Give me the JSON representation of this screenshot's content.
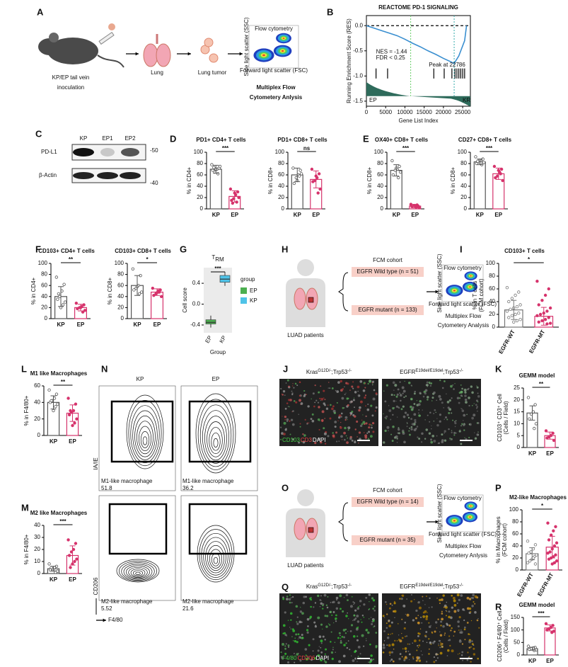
{
  "panel_labels": [
    "A",
    "B",
    "C",
    "D",
    "E",
    "F",
    "G",
    "H",
    "I",
    "L",
    "N",
    "J",
    "K",
    "M",
    "O",
    "P",
    "Q",
    "R"
  ],
  "schematic": {
    "inoculation": [
      "KP/EP tail vein",
      "inoculation"
    ],
    "lung": "Lung",
    "tumor": "Lung tumor",
    "analysis": [
      "Multiplex Flow",
      "Cytometery Anlysis"
    ]
  },
  "flow_plot": {
    "title": "Flow cytometry",
    "x_axis": "Forward light scatter (FSC)",
    "y_axis": "Side light scatter (SSC)"
  },
  "western_blot": {
    "lanes": [
      "KP",
      "EP1",
      "EP2"
    ],
    "rows": [
      "PD-L1",
      "β-Actin"
    ],
    "markers": [
      "-50",
      "-40"
    ]
  },
  "cohort_h": {
    "patients": "LUAD patients",
    "title": "FCM cohort",
    "groups": [
      "EGFR Wild type (n = 51)",
      "EGFR mutant (n = 133)"
    ],
    "analysis": [
      "Multiplex Flow",
      "Cytometery Analysis"
    ]
  },
  "cohort_o": {
    "patients": "LUAD patients",
    "title": "FCM cohort",
    "groups": [
      "EGFR Wild type (n = 14)",
      "EGFR mutant (n = 35)"
    ],
    "analysis": [
      "Multiplex Flow",
      "Cytometery Anlysis"
    ]
  },
  "flow_n": {
    "columns": [
      "KP",
      "EP"
    ],
    "y_axis_top": "IA/IE",
    "y_axis_bottom": "CD206",
    "x_axis": "F4/80",
    "gates": [
      {
        "label": "M1-like macrophage",
        "values": [
          51.8,
          36.2
        ]
      },
      {
        "label": "M2-like macrophage",
        "values": [
          5.52,
          21.6
        ]
      }
    ]
  },
  "images_j": {
    "titles": [
      [
        {
          "text": "Kras"
        },
        {
          "sup": "G12D/-"
        },
        {
          "text": ";Trp53"
        },
        {
          "sup": "-/-"
        }
      ],
      [
        {
          "text": "EGFR"
        },
        {
          "sup": "E19del/E19del"
        },
        {
          "text": ";Trp53"
        },
        {
          "sup": "-/-"
        }
      ]
    ],
    "stains": [
      "CD103",
      "CD3",
      "DAPI"
    ]
  },
  "images_q": {
    "titles": [
      [
        {
          "text": "Kras"
        },
        {
          "sup": "G12D/-"
        },
        {
          "text": ";Trp53"
        },
        {
          "sup": "-/-"
        }
      ],
      [
        {
          "text": "EGFR"
        },
        {
          "sup": "E19del/E19del"
        },
        {
          "text": ";Trp53"
        },
        {
          "sup": "-/-"
        }
      ]
    ],
    "stains": [
      "F4/80",
      "CD206",
      "DAPI"
    ]
  },
  "chart_data": [
    {
      "type": "gsea",
      "title": "REACTOME PD-1 SIGNALING",
      "y_label": "Running Enrichment Score (RES)",
      "x_label": "Gene List Index",
      "x": [
        0,
        2000,
        4000,
        6000,
        8000,
        10000,
        12000,
        14000,
        16000,
        18000,
        20000,
        22000,
        22786,
        24000,
        25500,
        26000
      ],
      "values": [
        0,
        -0.05,
        -0.1,
        -0.15,
        -0.2,
        -0.27,
        -0.35,
        -0.42,
        -0.5,
        -0.57,
        -0.65,
        -0.72,
        -0.75,
        -0.6,
        -0.3,
        0
      ],
      "hits": [
        2500,
        5500,
        17500,
        20200,
        22200,
        23000,
        23500,
        24000,
        24500,
        25000,
        25500
      ],
      "marker_lines": [
        11500,
        22786
      ],
      "color": "#3a8fd0",
      "xlim": [
        0,
        27000
      ],
      "xticks": [
        0,
        5000,
        10000,
        15000,
        20000,
        25000
      ],
      "ylim": [
        -1.6,
        0.2
      ],
      "yticks": [
        {
          "value": 0,
          "label": "0.0"
        },
        -0.5,
        {
          "value": -1,
          "label": "-1.0"
        },
        -1.5
      ],
      "annotations": [
        "NES = -1.44",
        "FDR < 0.25",
        "Peak at 22786"
      ],
      "left_label": "EP",
      "right_label": "KR"
    },
    {
      "type": "bar",
      "title": "PD1+ CD4+ T cells",
      "y_label": [
        "% in CD4+"
      ],
      "categories": [
        "KP",
        "EP"
      ],
      "values": [
        70,
        22
      ],
      "errors": [
        7,
        10
      ],
      "points": [
        [
          78,
          72,
          70,
          65,
          68,
          75,
          62,
          70,
          73
        ],
        [
          35,
          30,
          25,
          18,
          15,
          20,
          12,
          28,
          10
        ]
      ],
      "colors": [
        "#555555",
        "#d6336c"
      ],
      "significance": "***",
      "ylim": [
        0,
        100
      ],
      "yticks": [
        0,
        20,
        40,
        60,
        80,
        100
      ]
    },
    {
      "type": "bar",
      "title": "PD1+ CD8+ T cells",
      "y_label": [
        "% in CD8+"
      ],
      "categories": [
        "KP",
        "EP"
      ],
      "values": [
        60,
        52
      ],
      "errors": [
        12,
        15
      ],
      "points": [
        [
          72,
          68,
          60,
          55,
          45,
          62,
          58,
          50
        ],
        [
          70,
          62,
          55,
          50,
          48,
          35,
          28,
          58
        ]
      ],
      "colors": [
        "#555555",
        "#d6336c"
      ],
      "significance": "ns",
      "ylim": [
        0,
        100
      ],
      "yticks": [
        0,
        20,
        40,
        60,
        80,
        100
      ]
    },
    {
      "type": "bar",
      "title": "OX40+ CD8+ T cells",
      "y_label": [
        "% in CD8+"
      ],
      "categories": [
        "KP",
        "EP"
      ],
      "values": [
        68,
        5
      ],
      "errors": [
        10,
        3
      ],
      "points": [
        [
          85,
          75,
          70,
          68,
          60,
          65,
          55,
          72
        ],
        [
          8,
          5,
          3,
          6,
          4,
          2,
          7,
          5
        ]
      ],
      "colors": [
        "#555555",
        "#d6336c"
      ],
      "significance": "***",
      "ylim": [
        0,
        100
      ],
      "yticks": [
        0,
        20,
        40,
        60,
        80,
        100
      ]
    },
    {
      "type": "bar",
      "title": "CD27+ CD8+ T cells",
      "y_label": [
        "% in CD8+"
      ],
      "categories": [
        "KP",
        "EP"
      ],
      "values": [
        83,
        62
      ],
      "errors": [
        5,
        10
      ],
      "points": [
        [
          92,
          88,
          85,
          83,
          80,
          82,
          78,
          86,
          84
        ],
        [
          75,
          70,
          65,
          58,
          55,
          50,
          62,
          68
        ]
      ],
      "colors": [
        "#555555",
        "#d6336c"
      ],
      "significance": "***",
      "ylim": [
        0,
        100
      ],
      "yticks": [
        0,
        20,
        40,
        60,
        80,
        100
      ]
    },
    {
      "type": "bar",
      "title": "CD103+ CD4+ T cells",
      "y_label": [
        "% in CD4+"
      ],
      "categories": [
        "KP",
        "EP"
      ],
      "values": [
        40,
        20
      ],
      "errors": [
        18,
        6
      ],
      "points": [
        [
          75,
          62,
          50,
          40,
          35,
          30,
          25,
          20,
          45
        ],
        [
          28,
          25,
          22,
          20,
          18,
          15,
          12,
          20
        ]
      ],
      "colors": [
        "#555555",
        "#d6336c"
      ],
      "significance": "**",
      "ylim": [
        0,
        100
      ],
      "yticks": [
        0,
        20,
        40,
        60,
        80,
        100
      ]
    },
    {
      "type": "bar",
      "title": "CD103+ CD8+ T cells",
      "y_label": [
        "% in CD8+"
      ],
      "categories": [
        "KP",
        "EP"
      ],
      "values": [
        60,
        48
      ],
      "errors": [
        18,
        6
      ],
      "points": [
        [
          90,
          78,
          60,
          55,
          52,
          48,
          45,
          58
        ],
        [
          55,
          52,
          50,
          45,
          42,
          40,
          48,
          47
        ]
      ],
      "colors": [
        "#555555",
        "#d6336c"
      ],
      "significance": "*",
      "ylim": [
        0,
        100
      ],
      "yticks": [
        0,
        20,
        40,
        60,
        80,
        100
      ]
    },
    {
      "type": "box",
      "title": "T",
      "title_sub": "RM",
      "y_label": [
        "Cell score"
      ],
      "x_label": "Group",
      "categories": [
        "EP",
        "KP"
      ],
      "series": [
        {
          "name": "EP",
          "color": "#4caf50",
          "values": [
            -0.45,
            -0.38,
            -0.35,
            -0.3,
            -0.22
          ]
        },
        {
          "name": "KP",
          "color": "#4fc3e8",
          "values": [
            0.35,
            0.42,
            0.48,
            0.55,
            0.62
          ]
        }
      ],
      "legend_title": "group",
      "significance": "***",
      "ylim": [
        -0.55,
        0.7
      ],
      "yticks": [
        -0.4,
        {
          "value": 0,
          "label": "0.0"
        },
        0.4
      ]
    },
    {
      "type": "bar",
      "title": "CD103+ T cells",
      "y_label": [
        "% in T cells",
        "(FCM cohort)"
      ],
      "categories": [
        "EGFR-WT",
        "EGFR-MT"
      ],
      "values": [
        27,
        17
      ],
      "errors": [
        15,
        14
      ],
      "points": [
        [
          62,
          55,
          50,
          45,
          40,
          35,
          32,
          30,
          28,
          25,
          22,
          20,
          18,
          15,
          12,
          10,
          8
        ],
        [
          72,
          60,
          50,
          42,
          35,
          30,
          25,
          22,
          20,
          18,
          15,
          12,
          10,
          8,
          6,
          5
        ]
      ],
      "colors": [
        "#777777",
        "#d6336c"
      ],
      "significance": "*",
      "ylim": [
        0,
        100
      ],
      "yticks": [
        0,
        20,
        40,
        60,
        80,
        100
      ]
    },
    {
      "type": "bar",
      "title": "M1 like Macrophages",
      "y_label": [
        "% in F4/80+"
      ],
      "categories": [
        "KP",
        "EP"
      ],
      "values": [
        40,
        27
      ],
      "errors": [
        8,
        10
      ],
      "points": [
        [
          55,
          50,
          45,
          42,
          40,
          38,
          35,
          30,
          42
        ],
        [
          45,
          38,
          30,
          28,
          25,
          20,
          15,
          12,
          30
        ]
      ],
      "colors": [
        "#555555",
        "#d6336c"
      ],
      "significance": "**",
      "ylim": [
        0,
        60
      ],
      "yticks": [
        0,
        20,
        40,
        60
      ]
    },
    {
      "type": "bar",
      "title": "M2 like Macrophages",
      "y_label": [
        "% in F4/80+"
      ],
      "categories": [
        "KP",
        "EP"
      ],
      "values": [
        4,
        15
      ],
      "errors": [
        2,
        8
      ],
      "points": [
        [
          8,
          6,
          5,
          4,
          3,
          2,
          1,
          3,
          5
        ],
        [
          28,
          25,
          20,
          18,
          15,
          12,
          10,
          8,
          5
        ]
      ],
      "colors": [
        "#555555",
        "#d6336c"
      ],
      "significance": "***",
      "ylim": [
        0,
        40
      ],
      "yticks": [
        0,
        10,
        20,
        30,
        40
      ]
    },
    {
      "type": "bar",
      "title": "GEMM model",
      "y_label": [
        "CD103⁺ CD3⁺ Cell",
        "(Cells / Field)"
      ],
      "categories": [
        "KP",
        "EP"
      ],
      "values": [
        14.5,
        5
      ],
      "errors": [
        3,
        1.5
      ],
      "points": [
        [
          21,
          18,
          15,
          14,
          12,
          10,
          8
        ],
        [
          7,
          6,
          5,
          4.5,
          4,
          3
        ]
      ],
      "colors": [
        "#555555",
        "#d6336c"
      ],
      "significance": "**",
      "ylim": [
        0,
        25
      ],
      "yticks": [
        0,
        5,
        10,
        15,
        20,
        25
      ]
    },
    {
      "type": "bar",
      "title": "M2-like Macrophages",
      "y_label": [
        "% in Macrophages",
        "(FCM cohort)"
      ],
      "categories": [
        "EGFR-WT",
        "EGFR-MT"
      ],
      "values": [
        27,
        38
      ],
      "errors": [
        10,
        18
      ],
      "points": [
        [
          48,
          42,
          35,
          30,
          28,
          25,
          22,
          18,
          15,
          12,
          10,
          20,
          30
        ],
        [
          78,
          72,
          65,
          58,
          50,
          45,
          40,
          35,
          30,
          28,
          25,
          22,
          20,
          18,
          15,
          12,
          10
        ]
      ],
      "colors": [
        "#777777",
        "#d6336c"
      ],
      "significance": "*",
      "ylim": [
        0,
        100
      ],
      "yticks": [
        0,
        20,
        40,
        60,
        80,
        100
      ]
    },
    {
      "type": "bar",
      "title": "GEMM model",
      "y_label": [
        "CD206⁺ F4/80⁺ Cell",
        "(Cells / Field)"
      ],
      "categories": [
        "KP",
        "EP"
      ],
      "values": [
        25,
        108
      ],
      "errors": [
        6,
        12
      ],
      "points": [
        [
          35,
          30,
          28,
          25,
          22,
          20,
          18
        ],
        [
          125,
          118,
          110,
          105,
          100,
          95,
          90
        ]
      ],
      "colors": [
        "#555555",
        "#d6336c"
      ],
      "significance": "***",
      "ylim": [
        0,
        150
      ],
      "yticks": [
        0,
        50,
        100,
        150
      ]
    }
  ]
}
